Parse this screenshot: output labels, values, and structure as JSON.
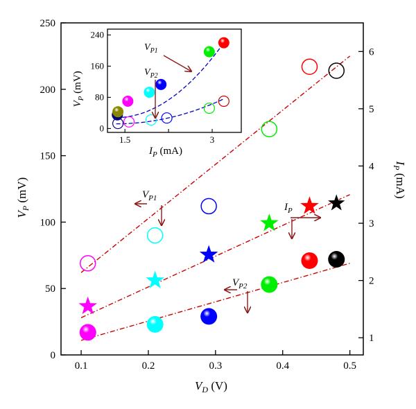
{
  "chart_data": [
    {
      "id": "main",
      "type": "scatter",
      "xlabel_main": "V",
      "xlabel_sub": "D",
      "xlabel_unit": " (V)",
      "ylabel_left_main": "V",
      "ylabel_left_sub": "P",
      "ylabel_left_unit": " (mV)",
      "ylabel_right_main": "I",
      "ylabel_right_sub": "P",
      "ylabel_right_unit": " (mA)",
      "xlim": [
        0.07,
        0.52
      ],
      "ylim_left": [
        0,
        250
      ],
      "ylim_right": [
        0.7,
        6.5
      ],
      "xticks": [
        0.1,
        0.2,
        0.3,
        0.4,
        0.5
      ],
      "xtick_labels": [
        "0.1",
        "0.2",
        "0.3",
        "0.4",
        "0.5"
      ],
      "yticks_left": [
        0,
        50,
        100,
        150,
        200,
        250
      ],
      "ytick_labels_left": [
        "0",
        "50",
        "100",
        "150",
        "200",
        "250"
      ],
      "yticks_right": [
        1,
        2,
        3,
        4,
        5,
        6
      ],
      "ytick_labels_right": [
        "1",
        "2",
        "3",
        "4",
        "5",
        "6"
      ],
      "point_colors": [
        "#ff00ff",
        "#00ffff",
        "#0000ff",
        "#00ee00",
        "#ff0000",
        "#000000"
      ],
      "series": [
        {
          "name": "VP1",
          "marker": "open-circle",
          "axis": "left",
          "x": [
            0.11,
            0.21,
            0.29,
            0.38,
            0.44,
            0.48
          ],
          "y": [
            69,
            90,
            112,
            170,
            217,
            214
          ]
        },
        {
          "name": "VP2",
          "marker": "filled-sphere",
          "axis": "left",
          "x": [
            0.11,
            0.21,
            0.29,
            0.38,
            0.44,
            0.48
          ],
          "y": [
            17,
            23,
            29,
            53,
            71,
            72
          ]
        },
        {
          "name": "IP",
          "marker": "star",
          "axis": "right",
          "x": [
            0.11,
            0.21,
            0.29,
            0.38,
            0.44,
            0.48
          ],
          "y": [
            1.55,
            2.0,
            2.45,
            3.0,
            3.3,
            3.35
          ]
        }
      ],
      "fits": [
        {
          "of": "VP1",
          "axis": "left",
          "x": [
            0.1,
            0.5
          ],
          "y": [
            62,
            225
          ],
          "color": "#cc0000"
        },
        {
          "of": "IP",
          "axis": "right",
          "x": [
            0.1,
            0.5
          ],
          "y": [
            1.35,
            3.5
          ],
          "color": "#cc0000"
        },
        {
          "of": "VP2",
          "axis": "left",
          "x": [
            0.1,
            0.5
          ],
          "y": [
            11,
            69
          ],
          "color": "#cc0000"
        }
      ],
      "annotations": [
        {
          "main": "V",
          "sub": "P1",
          "arrows": [
            "left",
            "down"
          ]
        },
        {
          "main": "I",
          "sub": "P",
          "arrows": [
            "right",
            "down"
          ]
        },
        {
          "main": "V",
          "sub": "P2",
          "arrows": [
            "left",
            "down"
          ]
        }
      ]
    },
    {
      "id": "inset",
      "type": "scatter",
      "xlabel_main": "I",
      "xlabel_sub": "P",
      "xlabel_unit": " (mA)",
      "ylabel_main": "V",
      "ylabel_sub": "P",
      "ylabel_unit": " (mV)",
      "xlim": [
        1.2,
        3.5
      ],
      "ylim": [
        -10,
        255
      ],
      "xticks": [
        1.5,
        2.25,
        3
      ],
      "xtick_labels": [
        "1.5",
        "",
        "3"
      ],
      "yticks": [
        0,
        80,
        160,
        240
      ],
      "ytick_labels": [
        "0",
        "80",
        "160",
        "240"
      ],
      "series": [
        {
          "name": "VP1",
          "marker": "filled-sphere",
          "x": [
            1.37,
            1.38,
            1.55,
            1.92,
            2.12,
            2.95,
            3.2
          ],
          "y": [
            35,
            43,
            70,
            93,
            113,
            197,
            220
          ],
          "colors": [
            "#000080",
            "#888800",
            "#ff00ff",
            "#00ffff",
            "#0000ff",
            "#00ee00",
            "#ff0000"
          ]
        },
        {
          "name": "VP2",
          "marker": "open-circle",
          "x": [
            1.38,
            1.57,
            1.95,
            2.22,
            2.95,
            3.2
          ],
          "y": [
            13,
            17,
            22,
            27,
            52,
            70
          ],
          "colors": [
            "#000080",
            "#ff00ff",
            "#00ffff",
            "#0000ff",
            "#00ee00",
            "#cc0000"
          ]
        }
      ],
      "fits": [
        {
          "of": "VP1",
          "x": [
            1.35,
            3.2
          ],
          "y": [
            28,
            220
          ],
          "color": "#0000cc"
        },
        {
          "of": "VP2",
          "x": [
            1.35,
            3.2
          ],
          "y": [
            12,
            76
          ],
          "color": "#0000cc"
        }
      ],
      "annotations": [
        {
          "main": "V",
          "sub": "P1"
        },
        {
          "main": "V",
          "sub": "P2"
        }
      ]
    }
  ]
}
